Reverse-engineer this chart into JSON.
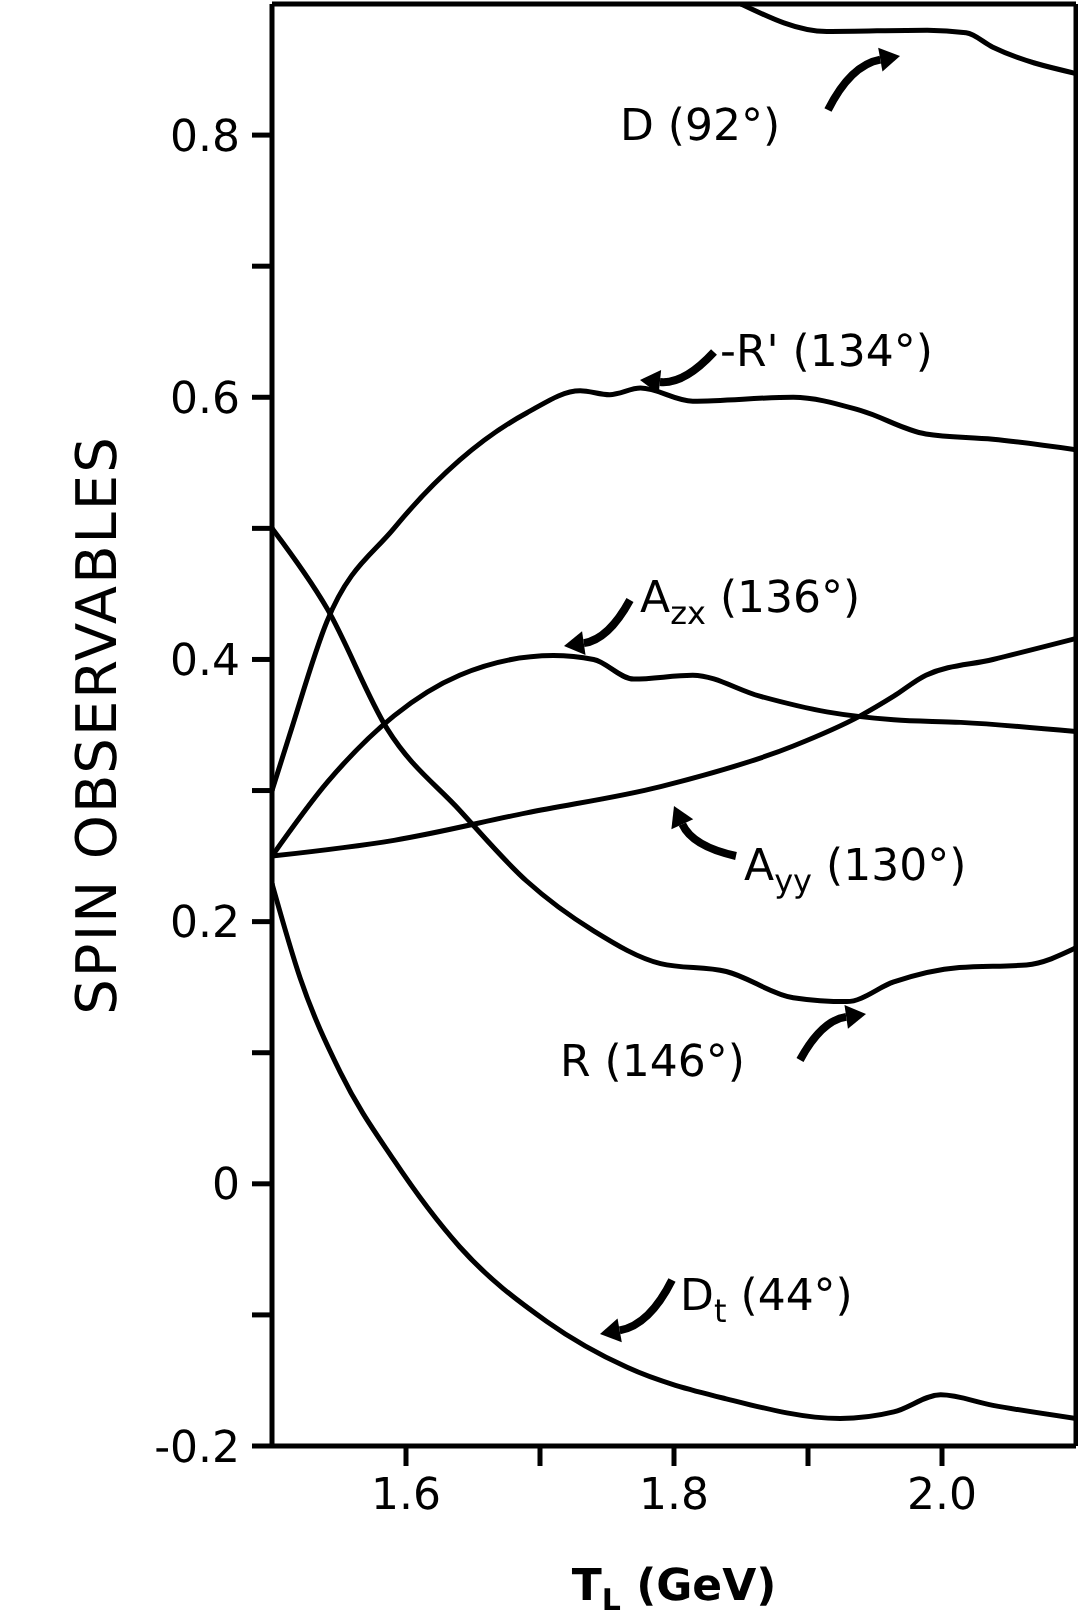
{
  "chart_data": {
    "type": "line",
    "xlabel": "T$_{L}$ (GeV)",
    "ylabel": "SPIN OBSERVABLES",
    "xlim": [
      1.5,
      2.1
    ],
    "ylim": [
      -0.2,
      0.9
    ],
    "xticks": [
      1.6,
      {
        "value": 1.7,
        "label": null
      },
      1.8,
      {
        "value": 1.9,
        "label": null
      },
      "2.0"
    ],
    "yticks": [
      -0.2,
      {
        "value": -0.1,
        "label": null
      },
      0,
      {
        "value": 0.1,
        "label": null
      },
      0.2,
      {
        "value": 0.3,
        "label": null
      },
      0.4,
      {
        "value": 0.5,
        "label": null
      },
      0.6,
      {
        "value": 0.7,
        "label": null
      },
      0.8
    ],
    "marker": "none",
    "line_style": "solid",
    "series": [
      {
        "color": "#000000",
        "x": [
          1.85,
          1.914,
          1.989,
          2.018,
          2.038,
          2.1
        ],
        "values": [
          0.9,
          0.879,
          0.88,
          0.878,
          0.867,
          0.847
        ]
      },
      {
        "color": "#000000",
        "x": [
          1.5,
          1.513,
          1.541,
          1.591,
          1.64,
          1.69,
          1.73,
          1.752,
          1.775,
          1.814,
          1.889,
          1.939,
          1.988,
          2.038,
          2.1
        ],
        "values": [
          0.3,
          0.342,
          0.429,
          0.5,
          0.552,
          0.588,
          0.605,
          0.602,
          0.607,
          0.597,
          0.6,
          0.59,
          0.572,
          0.568,
          0.56
        ]
      },
      {
        "color": "#000000",
        "x": [
          1.5,
          1.541,
          1.591,
          1.64,
          1.71,
          1.74,
          1.77,
          1.814,
          1.864,
          1.914,
          1.964,
          2.014,
          2.1
        ],
        "values": [
          0.25,
          0.306,
          0.357,
          0.388,
          0.403,
          0.4,
          0.385,
          0.388,
          0.372,
          0.36,
          0.354,
          0.352,
          0.345
        ]
      },
      {
        "color": "#000000",
        "x": [
          1.5,
          1.591,
          1.69,
          1.79,
          1.889,
          1.939,
          1.964,
          1.988,
          2.038,
          2.1
        ],
        "values": [
          0.25,
          0.262,
          0.283,
          0.303,
          0.334,
          0.357,
          0.372,
          0.388,
          0.4,
          0.416
        ]
      },
      {
        "color": "#000000",
        "x": [
          1.5,
          1.541,
          1.586,
          1.64,
          1.69,
          1.74,
          1.79,
          1.839,
          1.889,
          1.929,
          1.964,
          2.013,
          2.063,
          2.1
        ],
        "values": [
          0.5,
          0.439,
          0.347,
          0.285,
          0.231,
          0.193,
          0.168,
          0.162,
          0.142,
          0.139,
          0.154,
          0.165,
          0.167,
          0.18
        ]
      },
      {
        "color": "#000000",
        "x": [
          1.5,
          1.521,
          1.551,
          1.591,
          1.64,
          1.705,
          1.765,
          1.839,
          1.924,
          1.964,
          1.999,
          2.038,
          2.1
        ],
        "values": [
          0.229,
          0.157,
          0.085,
          0.018,
          -0.048,
          -0.105,
          -0.14,
          -0.164,
          -0.179,
          -0.174,
          -0.161,
          -0.169,
          -0.179
        ]
      }
    ],
    "annotations": [
      "D (92°)",
      "-R' (134°)",
      "A$_{zx}$ (136°)",
      "A$_{yy}$ (130°)",
      "R (146°)",
      "D$_{t}$ (44°)"
    ]
  }
}
